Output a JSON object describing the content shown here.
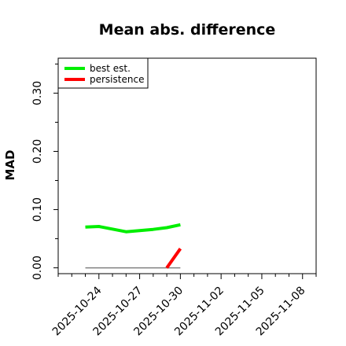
{
  "chart_data": {
    "type": "line",
    "title": "Mean abs. difference",
    "xlabel": "",
    "ylabel": "MAD",
    "ylim": [
      -0.01,
      0.36
    ],
    "y_ticks": [
      0.0,
      0.1,
      0.2,
      0.3
    ],
    "y_tick_labels": [
      "0.00",
      "0.10",
      "0.20",
      "0.30"
    ],
    "x_range": [
      "2025-10-21",
      "2025-11-09"
    ],
    "x_ticks": [
      "2025-10-24",
      "2025-10-27",
      "2025-10-30",
      "2025-11-02",
      "2025-11-05",
      "2025-11-08"
    ],
    "grid": false,
    "legend": "top-left",
    "series": [
      {
        "name": "best est.",
        "color": "#00ee00",
        "x": [
          "2025-10-23",
          "2025-10-24",
          "2025-10-26",
          "2025-10-28",
          "2025-10-29",
          "2025-10-30"
        ],
        "values": [
          0.07,
          0.071,
          0.062,
          0.066,
          0.069,
          0.074
        ]
      },
      {
        "name": "persistence",
        "color": "#ff0000",
        "x": [
          "2025-10-29",
          "2025-10-30"
        ],
        "values": [
          0.0,
          0.033
        ]
      }
    ],
    "reference_line": {
      "color": "#808080",
      "x": [
        "2025-10-23",
        "2025-10-30"
      ],
      "values": [
        0.0,
        0.0
      ]
    }
  }
}
